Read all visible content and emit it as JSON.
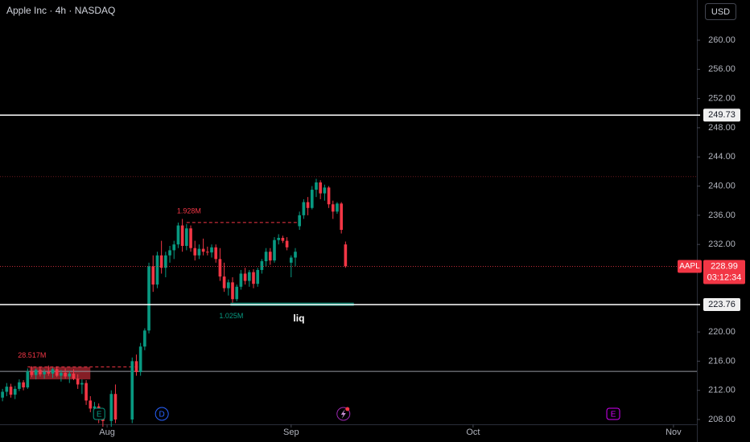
{
  "chart_data": {
    "type": "candlestick",
    "title": "Apple Inc · 4h · NASDAQ",
    "currency": "USD",
    "symbol": "AAPL",
    "last_price": 228.99,
    "countdown": "03:12:34",
    "up_color": "#089981",
    "down_color": "#f23645",
    "grid": false,
    "xlim": [
      -0.6,
      166
    ],
    "ylim": [
      207.34,
      265.51
    ],
    "xticks": [
      {
        "value": 25,
        "label": "Aug"
      },
      {
        "value": 69,
        "label": "Sep"
      },
      {
        "value": 112.5,
        "label": "Oct"
      },
      {
        "value": 160.4,
        "label": "Nov"
      }
    ],
    "yticks": [
      {
        "value": 208,
        "label": "208.00"
      },
      {
        "value": 212,
        "label": "212.00"
      },
      {
        "value": 216,
        "label": "216.00"
      },
      {
        "value": 220,
        "label": "220.00"
      },
      {
        "value": 232,
        "label": "232.00"
      },
      {
        "value": 236,
        "label": "236.00"
      },
      {
        "value": 240,
        "label": "240.00"
      },
      {
        "value": 244,
        "label": "244.00"
      },
      {
        "value": 248,
        "label": "248.00"
      },
      {
        "value": 252,
        "label": "252.00"
      },
      {
        "value": 256,
        "label": "256.00"
      },
      {
        "value": 260,
        "label": "260.00"
      }
    ],
    "x": [
      0,
      1,
      2,
      3,
      4,
      5,
      6,
      7,
      8,
      9,
      10,
      11,
      12,
      13,
      14,
      15,
      16,
      17,
      18,
      19,
      20,
      21,
      22,
      23,
      24,
      26,
      27,
      31,
      32,
      33,
      34,
      35,
      36,
      37,
      38,
      39,
      40,
      41,
      42,
      43,
      44,
      45,
      46,
      47,
      48,
      49,
      50,
      51,
      52,
      53,
      54,
      55,
      56,
      57,
      58,
      59,
      60,
      61,
      62,
      63,
      64,
      65,
      66,
      67,
      68,
      69,
      70,
      71,
      72,
      73,
      74,
      75,
      76,
      77,
      78,
      79,
      80,
      81,
      82
    ],
    "open": [
      211.0,
      211.8,
      212.5,
      211.4,
      212.2,
      213.1,
      212.4,
      214.6,
      214.1,
      214.8,
      214.2,
      214.5,
      214.3,
      214.9,
      214.0,
      214.4,
      213.9,
      214.3,
      213.6,
      212.8,
      213.0,
      210.6,
      209.5,
      209.8,
      208.2,
      207.8,
      211.5,
      208.0,
      216.0,
      214.5,
      218.0,
      220.2,
      229.0,
      226.5,
      230.5,
      228.8,
      230.5,
      231.2,
      232.0,
      234.6,
      231.8,
      234.2,
      231.5,
      230.5,
      231.4,
      231.0,
      230.9,
      231.6,
      230.0,
      227.6,
      226.0,
      226.8,
      224.5,
      226.2,
      228.0,
      227.0,
      228.2,
      226.6,
      228.5,
      229.7,
      231.0,
      229.8,
      232.6,
      232.9,
      232.5,
      229.5,
      230.2,
      234.5,
      236.0,
      237.8,
      237.0,
      239.5,
      240.5,
      239.0,
      239.8,
      237.5,
      236.5,
      237.6,
      232.0
    ],
    "high": [
      212.2,
      213.0,
      212.9,
      212.6,
      213.5,
      213.4,
      215.0,
      215.3,
      215.0,
      215.2,
      214.9,
      215.4,
      215.1,
      215.3,
      214.8,
      215.0,
      214.6,
      214.9,
      214.2,
      213.5,
      213.4,
      211.2,
      210.4,
      210.2,
      209.0,
      212.0,
      212.8,
      216.5,
      216.9,
      218.5,
      220.5,
      229.5,
      230.5,
      231.0,
      232.5,
      231.0,
      231.8,
      232.5,
      235.0,
      235.5,
      234.8,
      234.6,
      232.5,
      232.0,
      232.8,
      231.7,
      232.0,
      232.0,
      231.5,
      229.5,
      227.2,
      227.5,
      226.5,
      228.5,
      228.8,
      228.5,
      228.6,
      228.8,
      230.0,
      231.5,
      231.5,
      233.0,
      233.4,
      233.2,
      233.0,
      230.5,
      231.5,
      236.5,
      238.2,
      238.5,
      240.0,
      241.0,
      240.8,
      240.2,
      240.0,
      238.0,
      237.8,
      237.8,
      232.4
    ],
    "low": [
      210.5,
      211.2,
      211.0,
      210.8,
      211.9,
      212.0,
      212.2,
      213.8,
      213.5,
      213.9,
      213.6,
      214.0,
      213.7,
      213.8,
      213.2,
      213.6,
      213.0,
      213.4,
      212.2,
      211.5,
      210.0,
      209.0,
      208.3,
      207.5,
      207.0,
      207.0,
      207.5,
      207.5,
      214.0,
      214.0,
      217.5,
      219.8,
      225.5,
      226.0,
      228.0,
      227.5,
      229.5,
      230.0,
      231.5,
      231.0,
      231.2,
      231.0,
      229.8,
      230.0,
      230.5,
      230.5,
      230.2,
      229.5,
      227.0,
      225.5,
      225.0,
      224.0,
      224.2,
      225.8,
      226.5,
      226.2,
      226.0,
      226.2,
      228.0,
      229.0,
      229.2,
      229.5,
      232.0,
      232.2,
      231.2,
      227.5,
      229.0,
      234.0,
      235.5,
      236.0,
      236.8,
      238.5,
      238.2,
      238.0,
      237.0,
      235.5,
      236.2,
      233.5,
      228.8
    ],
    "close": [
      211.8,
      212.5,
      211.4,
      212.2,
      213.1,
      212.4,
      214.6,
      214.1,
      214.8,
      214.2,
      214.5,
      214.3,
      214.9,
      214.0,
      214.4,
      213.9,
      214.3,
      213.6,
      212.8,
      213.0,
      210.6,
      209.5,
      209.8,
      208.2,
      207.8,
      211.5,
      208.0,
      216.0,
      214.5,
      218.0,
      220.2,
      229.0,
      226.5,
      230.5,
      228.8,
      230.5,
      231.2,
      232.0,
      234.6,
      231.8,
      234.2,
      231.5,
      230.5,
      231.4,
      231.0,
      230.9,
      231.6,
      230.0,
      227.6,
      226.0,
      226.8,
      224.5,
      226.2,
      228.0,
      227.0,
      228.2,
      226.6,
      228.5,
      229.7,
      231.0,
      229.8,
      232.6,
      232.9,
      232.5,
      231.6,
      230.2,
      231.0,
      236.0,
      237.8,
      237.0,
      239.5,
      240.5,
      239.0,
      239.8,
      237.5,
      236.5,
      237.6,
      234.0,
      229.0
    ],
    "levels": [
      {
        "price": 249.73
      },
      {
        "price": 223.76
      }
    ],
    "plain_line": 214.6,
    "range_high": 241.3,
    "zone": {
      "top": 215.2,
      "bottom": 213.5,
      "from": 6.5,
      "to": 21
    },
    "volume_levels": [
      {
        "label": "1.928M",
        "price": 235.0,
        "from": 44,
        "to": 71,
        "color": "#f23645"
      },
      {
        "label": "28.517M",
        "price": 215.2,
        "from": 6,
        "to": 33,
        "color": "#f23645"
      },
      {
        "label": "1.025M",
        "price": 223.8,
        "from": 54.5,
        "to": 84,
        "color": "#089981"
      }
    ],
    "liq_label": "liq",
    "events": [
      {
        "label": "E",
        "x": 23.1,
        "color": "#089981"
      },
      {
        "label": "D",
        "x": 38.1,
        "color": "#2962ff"
      },
      {
        "label": "E",
        "x": 146,
        "color": "#d500f9"
      }
    ],
    "bolt_x": 81.5
  }
}
